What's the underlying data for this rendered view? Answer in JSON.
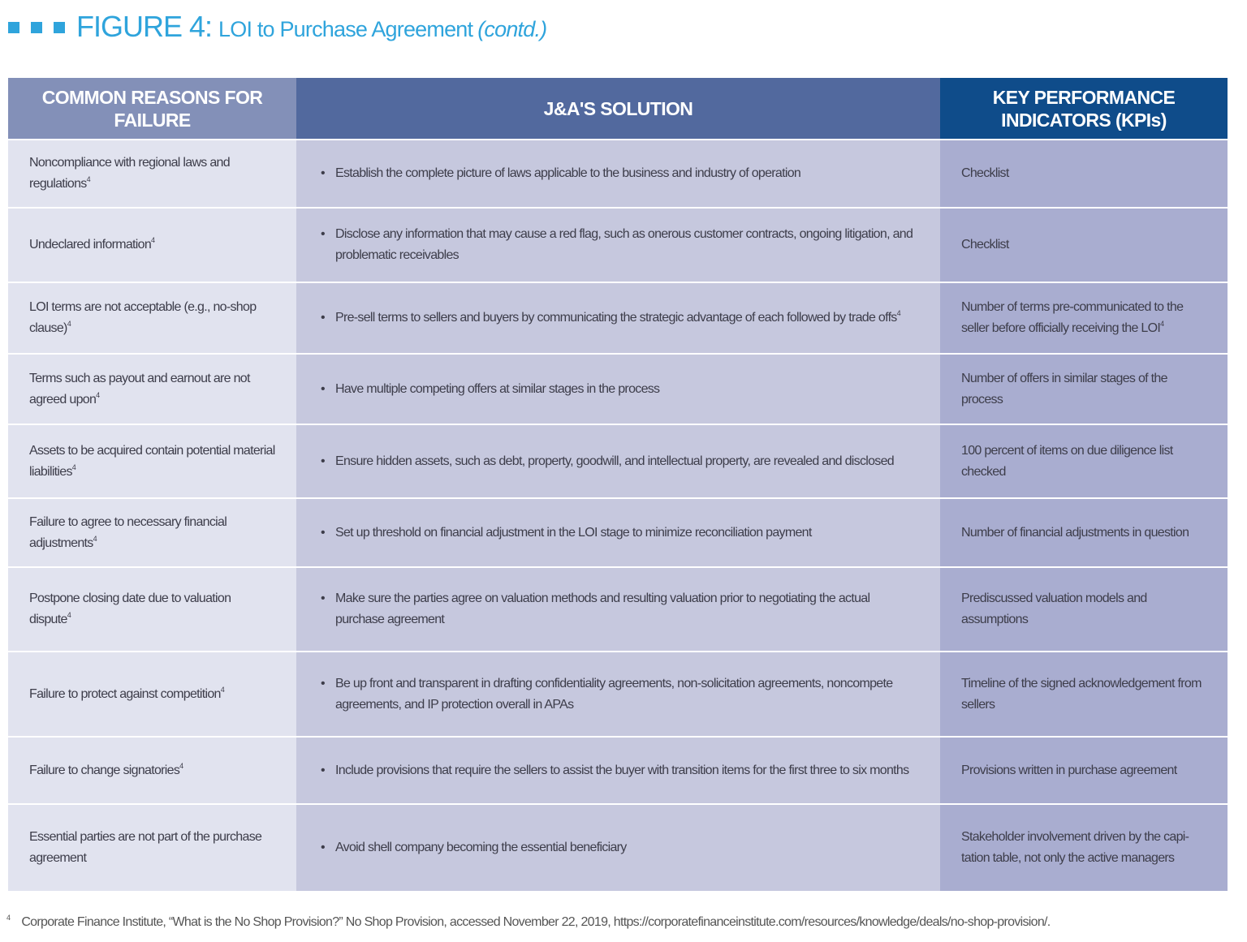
{
  "title": {
    "figure": "FIGURE 4:",
    "subtitle": "LOI to Purchase Agreement",
    "contd": "(contd.)",
    "accent": "#2fa4dc"
  },
  "table": {
    "headers": [
      "COMMON REASONS FOR FAILURE",
      "J&A'S SOLUTION",
      "KEY PERFORMANCE INDICATORS (KPIs)"
    ],
    "header_colors": [
      "#8390b8",
      "#52699e",
      "#0f4c8a"
    ],
    "rows": [
      {
        "reason": "Noncompliance with regional laws and regulations",
        "reason_sup": "4",
        "solution": "Establish the complete picture of laws applicable to the business and industry of operation",
        "solution_sup": "",
        "kpi": "Checklist",
        "kpi_sup": ""
      },
      {
        "reason": "Undeclared information",
        "reason_sup": "4",
        "solution": "Disclose any information that may cause a red flag, such as onerous customer contracts, ongoing litigation, and problematic receivables",
        "solution_sup": "",
        "kpi": "Checklist",
        "kpi_sup": ""
      },
      {
        "reason": "LOI terms are not acceptable (e.g., no-shop clause)",
        "reason_sup": "4",
        "solution": "Pre-sell terms to sellers and buyers by communicating the strategic advantage of each followed by trade offs",
        "solution_sup": "4",
        "kpi": "Number of terms pre-communicated to the seller before officially receiving the LOI",
        "kpi_sup": "4"
      },
      {
        "reason": "Terms such as payout and earnout are not agreed upon",
        "reason_sup": "4",
        "solution": "Have multiple competing offers at similar stages in the process",
        "solution_sup": "",
        "kpi": "Number of offers in similar stages of the process",
        "kpi_sup": ""
      },
      {
        "reason": "Assets to be acquired contain potential material liabilities",
        "reason_sup": "4",
        "solution": "Ensure hidden assets, such as debt, property, goodwill, and intellectual property, are revealed and disclosed",
        "solution_sup": "",
        "kpi": "100 percent of items on due diligence list checked",
        "kpi_sup": ""
      },
      {
        "reason": "Failure to agree to necessary financial adjustments",
        "reason_sup": "4",
        "solution": "Set up threshold on financial adjustment in the LOI stage to minimize reconciliation payment",
        "solution_sup": "",
        "kpi": "Number of financial adjustments in question",
        "kpi_sup": ""
      },
      {
        "reason": "Postpone closing date due to valuation dispute",
        "reason_sup": "4",
        "solution": "Make sure the parties agree on valuation methods and resulting valuation prior to negotiating the actual purchase agreement",
        "solution_sup": "",
        "kpi": "Prediscussed valuation models and assumptions",
        "kpi_sup": ""
      },
      {
        "reason": "Failure to protect against competition",
        "reason_sup": "4",
        "solution": "Be up front and transparent in drafting confidentiality agreements, non-solicitation agreements, noncompete agreements, and IP protection overall in APAs",
        "solution_sup": "",
        "kpi": "Timeline of the signed acknowledgement from sellers",
        "kpi_sup": ""
      },
      {
        "reason": "Failure to change signatories",
        "reason_sup": "4",
        "solution": "Include provisions that require the sellers to assist the buyer with transition items for the first three to six months",
        "solution_sup": "",
        "kpi": "Provisions written in purchase agreement",
        "kpi_sup": ""
      },
      {
        "reason": "Essential parties are not part of the purchase agreement",
        "reason_sup": "",
        "solution": "Avoid shell company becoming the essential beneficiary",
        "solution_sup": "",
        "kpi": "Stakeholder involvement driven by the capi-tation table, not only the active managers",
        "kpi_sup": ""
      }
    ]
  },
  "footnote": {
    "marker": "4",
    "text": "Corporate Finance Institute, “What is the No Shop Provision?” No Shop Provision, accessed November 22, 2019, https://corporatefinanceinstitute.com/resources/knowledge/deals/no-shop-provision/."
  }
}
